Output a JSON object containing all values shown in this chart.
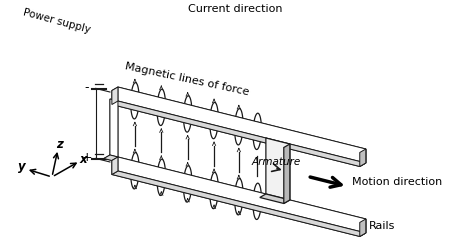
{
  "bg_color": "#ffffff",
  "line_color": "#1a1a1a",
  "labels": {
    "power_supply": "Power supply",
    "current_direction": "Current direction",
    "rails": "Rails",
    "armature": "Armature",
    "motion_direction": "Motion direction",
    "magnetic_lines": "Magnetic lines of force",
    "plus": "+",
    "minus": "−",
    "x_axis": "x",
    "y_axis": "y",
    "z_axis": "z"
  },
  "figsize": [
    4.68,
    2.45
  ],
  "dpi": 100
}
